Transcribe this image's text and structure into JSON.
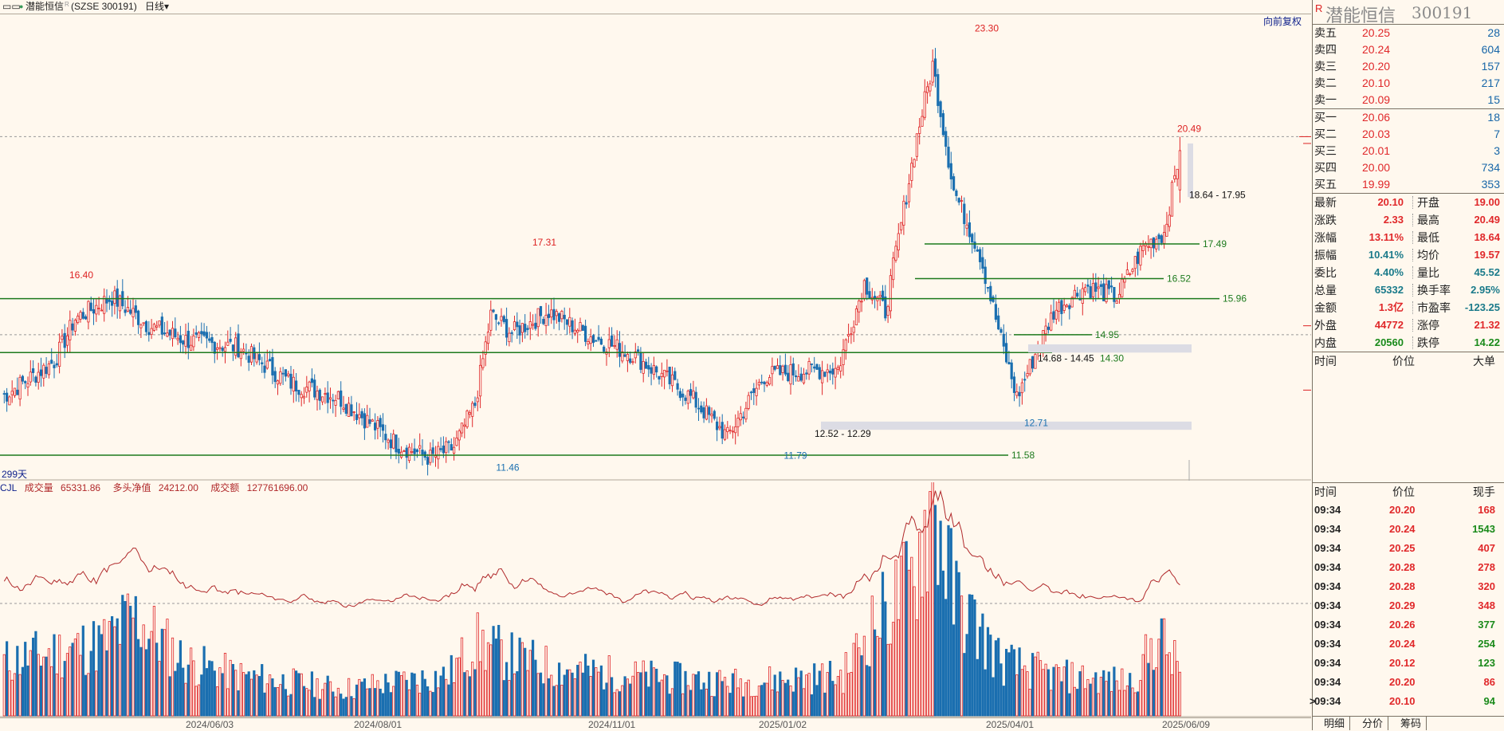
{
  "topbar": {
    "icon": "window-toggle-icon",
    "dot": "●",
    "name": "潜能恒信",
    "rmark": "R",
    "code": "(SZSE 300191)",
    "period": "日线",
    "period_arrow": "▾"
  },
  "fuquan": "向前复权",
  "days_label": "299天",
  "volume_legend": {
    "name": "CJL",
    "v1_label": "成交量",
    "v1": "65331.86",
    "v2_label": "多头净值",
    "v2": "24212.00",
    "v3_label": "成交额",
    "v3": "127761696.00"
  },
  "x_axis_dates": [
    "2024/06/03",
    "2024/08/01",
    "2024/11/01",
    "2025/01/02",
    "2025/04/01",
    "2025/06/09"
  ],
  "chart_data": {
    "type": "candlestick",
    "ylim": [
      11.0,
      23.8
    ],
    "price_labels": [
      {
        "label": "16.40",
        "value": 16.4,
        "color": "red"
      },
      {
        "label": "17.31",
        "value": 17.31,
        "color": "red"
      },
      {
        "label": "23.30",
        "value": 23.3,
        "color": "red"
      },
      {
        "label": "20.49",
        "value": 20.49,
        "color": "red"
      },
      {
        "label": "11.46",
        "value": 11.46,
        "color": "blue"
      },
      {
        "label": "11.79",
        "value": 11.79,
        "color": "blue"
      },
      {
        "label": "12.71",
        "value": 12.71,
        "color": "blue"
      }
    ],
    "support_resistance_lines": [
      {
        "label": "15.96",
        "value": 15.96
      },
      {
        "label": "14.95",
        "value": 14.95
      },
      {
        "label": "17.49",
        "value": 17.49
      },
      {
        "label": "16.52",
        "value": 16.52
      },
      {
        "label": "11.58",
        "value": 11.58
      }
    ],
    "zones": [
      {
        "label": "18.64 - 17.95",
        "low": 17.95,
        "high": 18.64
      },
      {
        "label": "14.68 - 14.45",
        "low": 14.45,
        "high": 14.68
      },
      {
        "label": "12.52 - 12.29",
        "low": 12.29,
        "high": 12.52
      }
    ],
    "zone_side_label": "14.30",
    "dashed_levels": [
      20.49,
      14.95
    ],
    "keypoints": [
      [
        0,
        13.2
      ],
      [
        20,
        14.2
      ],
      [
        28,
        15.4
      ],
      [
        42,
        16.0
      ],
      [
        56,
        15.2
      ],
      [
        70,
        14.8
      ],
      [
        90,
        14.6
      ],
      [
        110,
        13.6
      ],
      [
        128,
        13.2
      ],
      [
        150,
        11.9
      ],
      [
        163,
        11.5
      ],
      [
        172,
        11.8
      ],
      [
        180,
        13.0
      ],
      [
        186,
        15.5
      ],
      [
        194,
        15.0
      ],
      [
        208,
        15.6
      ],
      [
        224,
        14.9
      ],
      [
        240,
        14.4
      ],
      [
        262,
        13.2
      ],
      [
        276,
        12.1
      ],
      [
        290,
        13.8
      ],
      [
        300,
        13.9
      ],
      [
        318,
        14.0
      ],
      [
        328,
        16.4
      ],
      [
        336,
        15.6
      ],
      [
        348,
        20.5
      ],
      [
        354,
        22.5
      ],
      [
        362,
        19.0
      ],
      [
        372,
        17.2
      ],
      [
        380,
        14.8
      ],
      [
        386,
        13.2
      ],
      [
        400,
        15.6
      ],
      [
        412,
        16.3
      ],
      [
        424,
        16.0
      ],
      [
        434,
        17.4
      ],
      [
        442,
        17.8
      ],
      [
        448,
        20.1
      ]
    ],
    "volume_ylim": [
      0,
      340000
    ],
    "volume_keypoints": [
      [
        0,
        80000
      ],
      [
        40,
        110000
      ],
      [
        50,
        150000
      ],
      [
        70,
        80000
      ],
      [
        90,
        60000
      ],
      [
        130,
        40000
      ],
      [
        150,
        50000
      ],
      [
        170,
        60000
      ],
      [
        180,
        110000
      ],
      [
        192,
        90000
      ],
      [
        212,
        70000
      ],
      [
        240,
        60000
      ],
      [
        280,
        50000
      ],
      [
        320,
        60000
      ],
      [
        330,
        130000
      ],
      [
        346,
        200000
      ],
      [
        354,
        330000
      ],
      [
        362,
        180000
      ],
      [
        380,
        80000
      ],
      [
        400,
        60000
      ],
      [
        430,
        50000
      ],
      [
        440,
        120000
      ],
      [
        448,
        65332
      ]
    ]
  },
  "right_panel": {
    "rmark": "R",
    "name": "潜能恒信",
    "code": "300191",
    "asks": [
      {
        "label": "卖五",
        "price": "20.25",
        "qty": "28"
      },
      {
        "label": "卖四",
        "price": "20.24",
        "qty": "604"
      },
      {
        "label": "卖三",
        "price": "20.20",
        "qty": "157"
      },
      {
        "label": "卖二",
        "price": "20.10",
        "qty": "217"
      },
      {
        "label": "卖一",
        "price": "20.09",
        "qty": "15"
      }
    ],
    "bids": [
      {
        "label": "买一",
        "price": "20.06",
        "qty": "18"
      },
      {
        "label": "买二",
        "price": "20.03",
        "qty": "7"
      },
      {
        "label": "买三",
        "price": "20.01",
        "qty": "3"
      },
      {
        "label": "买四",
        "price": "20.00",
        "qty": "734"
      },
      {
        "label": "买五",
        "price": "19.99",
        "qty": "353"
      }
    ],
    "quote": [
      {
        "l1": "最新",
        "v1": "20.10",
        "c1": "red",
        "l2": "开盘",
        "v2": "19.00",
        "c2": "red"
      },
      {
        "l1": "涨跌",
        "v1": "2.33",
        "c1": "red",
        "l2": "最高",
        "v2": "20.49",
        "c2": "red"
      },
      {
        "l1": "涨幅",
        "v1": "13.11%",
        "c1": "red",
        "l2": "最低",
        "v2": "18.64",
        "c2": "red"
      },
      {
        "l1": "振幅",
        "v1": "10.41%",
        "c1": "teal",
        "l2": "均价",
        "v2": "19.57",
        "c2": "red"
      },
      {
        "l1": "委比",
        "v1": "4.40%",
        "c1": "teal",
        "l2": "量比",
        "v2": "45.52",
        "c2": "teal"
      },
      {
        "l1": "总量",
        "v1": "65332",
        "c1": "teal",
        "l2": "换手率",
        "v2": "2.95%",
        "c2": "teal"
      },
      {
        "l1": "金额",
        "v1": "1.3亿",
        "c1": "red",
        "l2": "市盈率",
        "v2": "-123.25",
        "c2": "teal"
      },
      {
        "l1": "外盘",
        "v1": "44772",
        "c1": "red",
        "l2": "涨停",
        "v2": "21.32",
        "c2": "red"
      },
      {
        "l1": "内盘",
        "v1": "20560",
        "c1": "green",
        "l2": "跌停",
        "v2": "14.22",
        "c2": "green"
      }
    ],
    "big_header": {
      "c1": "时间",
      "c2": "价位",
      "c3": "大单"
    },
    "tick_header": {
      "c1": "时间",
      "c2": "价位",
      "c3": "现手"
    },
    "ticks": [
      {
        "t": "09:34",
        "p": "20.20",
        "v": "168",
        "vc": "red"
      },
      {
        "t": "09:34",
        "p": "20.24",
        "v": "1543",
        "vc": "green"
      },
      {
        "t": "09:34",
        "p": "20.25",
        "v": "407",
        "vc": "red"
      },
      {
        "t": "09:34",
        "p": "20.28",
        "v": "278",
        "vc": "red"
      },
      {
        "t": "09:34",
        "p": "20.28",
        "v": "320",
        "vc": "red"
      },
      {
        "t": "09:34",
        "p": "20.29",
        "v": "348",
        "vc": "red"
      },
      {
        "t": "09:34",
        "p": "20.26",
        "v": "377",
        "vc": "green"
      },
      {
        "t": "09:34",
        "p": "20.24",
        "v": "254",
        "vc": "green"
      },
      {
        "t": "09:34",
        "p": "20.12",
        "v": "123",
        "vc": "green"
      },
      {
        "t": "09:34",
        "p": "20.20",
        "v": "86",
        "vc": "red"
      },
      {
        "t": "09:34",
        "p": "20.10",
        "v": "94",
        "vc": "green"
      }
    ],
    "tick_marker": ">",
    "tabs": [
      "明细",
      "分价",
      "筹码"
    ]
  },
  "colors": {
    "up": "#e0282a",
    "down": "#1a6fb0",
    "level_line": "#1d7a1d",
    "zone": "#dcdce4",
    "ma_line": "#b0282a",
    "bg": "#fff8ee"
  }
}
